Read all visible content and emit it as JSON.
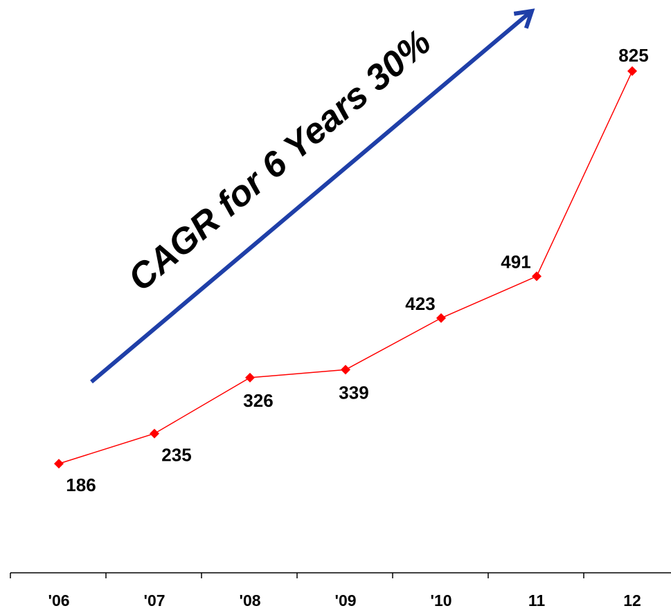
{
  "chart_data": {
    "type": "line",
    "title": "",
    "xlabel": "",
    "ylabel": "",
    "categories": [
      "'06",
      "'07",
      "'08",
      "'09",
      "'10",
      "11",
      "12"
    ],
    "series": [
      {
        "values": [
          186,
          235,
          326,
          339,
          423,
          491,
          825
        ],
        "color": "#ff0000",
        "marker": "diamond"
      }
    ],
    "data_labels": [
      "186",
      "235",
      "326",
      "339",
      "423",
      "491",
      "825"
    ],
    "ylim": [
      0,
      900
    ],
    "grid": false,
    "legend": "none",
    "annotation": {
      "text": "CAGR for 6 Years 30%",
      "arrow_color": "#1f3fa8",
      "text_color": "#000000"
    },
    "axis_color": "#000000"
  }
}
